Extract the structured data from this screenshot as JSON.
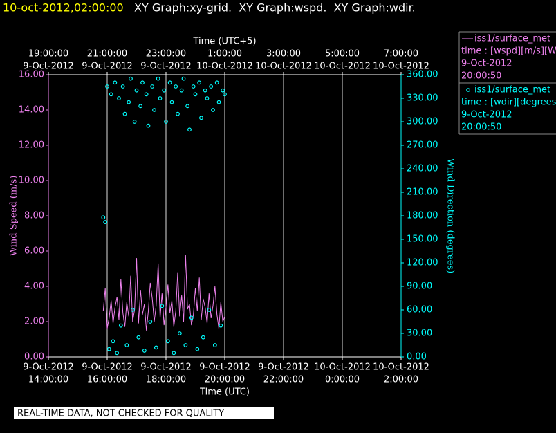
{
  "header": {
    "timestamp": "10-oct-2012,02:00:00",
    "graphs": "XY Graph:xy-grid.  XY Graph:wspd.  XY Graph:wdir."
  },
  "footer": "REAL-TIME DATA, NOT CHECKED FOR QUALITY",
  "chart_data": {
    "type": "xy",
    "x_label": "Time (UTC)",
    "x2_label": "Time (UTC+5)",
    "y_label": "Wind Speed (m/s)",
    "y2_label": "Wind Direction (degrees)",
    "xlim": [
      "2012-10-09T14:00",
      "2012-10-10T02:00"
    ],
    "xticks": [
      {
        "value": "2012-10-09T14:00",
        "label": "14:00:00",
        "date_label": "9-Oct-2012"
      },
      {
        "value": "2012-10-09T16:00",
        "label": "16:00:00",
        "date_label": "9-Oct-2012"
      },
      {
        "value": "2012-10-09T18:00",
        "label": "18:00:00",
        "date_label": "9-Oct-2012"
      },
      {
        "value": "2012-10-09T20:00",
        "label": "20:00:00",
        "date_label": "9-Oct-2012"
      },
      {
        "value": "2012-10-09T22:00",
        "label": "22:00:00",
        "date_label": "9-Oct-2012"
      },
      {
        "value": "2012-10-10T00:00",
        "label": "0:00:00",
        "date_label": "10-Oct-2012"
      },
      {
        "value": "2012-10-10T02:00",
        "label": "2:00:00",
        "date_label": "10-Oct-2012"
      }
    ],
    "x2ticks": [
      {
        "value": "2012-10-09T14:00",
        "label": "19:00:00",
        "date_label": "9-Oct-2012"
      },
      {
        "value": "2012-10-09T16:00",
        "label": "21:00:00",
        "date_label": "9-Oct-2012"
      },
      {
        "value": "2012-10-09T18:00",
        "label": "23:00:00",
        "date_label": "9-Oct-2012"
      },
      {
        "value": "2012-10-09T20:00",
        "label": "1:00:00",
        "date_label": "10-Oct-2012"
      },
      {
        "value": "2012-10-09T22:00",
        "label": "3:00:00",
        "date_label": "10-Oct-2012"
      },
      {
        "value": "2012-10-10T00:00",
        "label": "5:00:00",
        "date_label": "10-Oct-2012"
      },
      {
        "value": "2012-10-10T02:00",
        "label": "7:00:00",
        "date_label": "10-Oct-2012"
      }
    ],
    "ylim": [
      0,
      16
    ],
    "yticks": [
      {
        "value": 0,
        "label": "0.00"
      },
      {
        "value": 2,
        "label": "2.00"
      },
      {
        "value": 4,
        "label": "4.00"
      },
      {
        "value": 6,
        "label": "6.00"
      },
      {
        "value": 8,
        "label": "8.00"
      },
      {
        "value": 10,
        "label": "10.00"
      },
      {
        "value": 12,
        "label": "12.00"
      },
      {
        "value": 14,
        "label": "14.00"
      },
      {
        "value": 16,
        "label": "16.00"
      }
    ],
    "y2lim": [
      0,
      360
    ],
    "y2ticks": [
      {
        "value": 0,
        "label": "0.00"
      },
      {
        "value": 30,
        "label": "30.00"
      },
      {
        "value": 60,
        "label": "60.00"
      },
      {
        "value": 90,
        "label": "90.00"
      },
      {
        "value": 120,
        "label": "120.00"
      },
      {
        "value": 150,
        "label": "150.00"
      },
      {
        "value": 180,
        "label": "180.00"
      },
      {
        "value": 210,
        "label": "210.00"
      },
      {
        "value": 240,
        "label": "240.00"
      },
      {
        "value": 270,
        "label": "270.00"
      },
      {
        "value": 300,
        "label": "300.00"
      },
      {
        "value": 330,
        "label": "330.00"
      },
      {
        "value": 360,
        "label": "360.00"
      }
    ],
    "grid": true,
    "x": [
      "2012-10-09T15:52",
      "2012-10-09T15:56",
      "2012-10-09T16:00",
      "2012-10-09T16:04",
      "2012-10-09T16:08",
      "2012-10-09T16:12",
      "2012-10-09T16:16",
      "2012-10-09T16:20",
      "2012-10-09T16:24",
      "2012-10-09T16:28",
      "2012-10-09T16:32",
      "2012-10-09T16:36",
      "2012-10-09T16:40",
      "2012-10-09T16:44",
      "2012-10-09T16:48",
      "2012-10-09T16:52",
      "2012-10-09T16:56",
      "2012-10-09T17:00",
      "2012-10-09T17:04",
      "2012-10-09T17:08",
      "2012-10-09T17:12",
      "2012-10-09T17:16",
      "2012-10-09T17:20",
      "2012-10-09T17:24",
      "2012-10-09T17:28",
      "2012-10-09T17:32",
      "2012-10-09T17:36",
      "2012-10-09T17:40",
      "2012-10-09T17:44",
      "2012-10-09T17:48",
      "2012-10-09T17:52",
      "2012-10-09T17:56",
      "2012-10-09T18:00",
      "2012-10-09T18:04",
      "2012-10-09T18:08",
      "2012-10-09T18:12",
      "2012-10-09T18:16",
      "2012-10-09T18:20",
      "2012-10-09T18:24",
      "2012-10-09T18:28",
      "2012-10-09T18:32",
      "2012-10-09T18:36",
      "2012-10-09T18:40",
      "2012-10-09T18:44",
      "2012-10-09T18:48",
      "2012-10-09T18:52",
      "2012-10-09T18:56",
      "2012-10-09T19:00",
      "2012-10-09T19:04",
      "2012-10-09T19:08",
      "2012-10-09T19:12",
      "2012-10-09T19:16",
      "2012-10-09T19:20",
      "2012-10-09T19:24",
      "2012-10-09T19:28",
      "2012-10-09T19:32",
      "2012-10-09T19:36",
      "2012-10-09T19:40",
      "2012-10-09T19:44",
      "2012-10-09T19:48",
      "2012-10-09T19:52",
      "2012-10-09T19:56",
      "2012-10-09T20:00"
    ],
    "series": [
      {
        "name": "iss1/surface_met",
        "color": "#ee82ee",
        "style": "line",
        "axis": "y",
        "legend_lines": [
          "time : [wspd][m/s][Wind",
          "9-Oct-2012",
          "20:00:50"
        ],
        "values": [
          2.6,
          3.9,
          1.6,
          2.2,
          3.2,
          1.9,
          2.8,
          3.4,
          2.1,
          4.4,
          2.5,
          1.7,
          3.1,
          2.3,
          4.6,
          2.0,
          2.7,
          5.6,
          1.9,
          3.8,
          2.4,
          3.0,
          1.5,
          2.6,
          4.2,
          3.3,
          2.0,
          2.9,
          5.3,
          2.2,
          3.6,
          1.8,
          2.8,
          4.1,
          2.5,
          3.2,
          1.7,
          2.6,
          4.8,
          2.3,
          3.5,
          2.0,
          5.8,
          2.7,
          3.0,
          1.8,
          2.4,
          3.9,
          2.6,
          4.5,
          2.1,
          3.3,
          2.8,
          1.9,
          3.6,
          2.2,
          2.9,
          4.0,
          2.4,
          1.6,
          3.1,
          2.0,
          2.3
        ]
      },
      {
        "name": "iss1/surface_met",
        "color": "#00ffff",
        "style": "scatter",
        "axis": "y2",
        "legend_lines": [
          "time : [wdir][degrees][V",
          "9-Oct-2012",
          "20:00:50"
        ],
        "values": [
          178,
          172,
          345,
          10,
          335,
          20,
          350,
          5,
          330,
          40,
          345,
          310,
          15,
          325,
          355,
          60,
          300,
          340,
          25,
          320,
          350,
          8,
          335,
          295,
          45,
          345,
          315,
          12,
          355,
          330,
          65,
          340,
          300,
          20,
          350,
          325,
          5,
          345,
          310,
          30,
          340,
          355,
          15,
          320,
          290,
          50,
          345,
          335,
          10,
          350,
          305,
          25,
          340,
          330,
          60,
          345,
          315,
          15,
          350,
          325,
          40,
          340,
          335
        ]
      }
    ]
  }
}
